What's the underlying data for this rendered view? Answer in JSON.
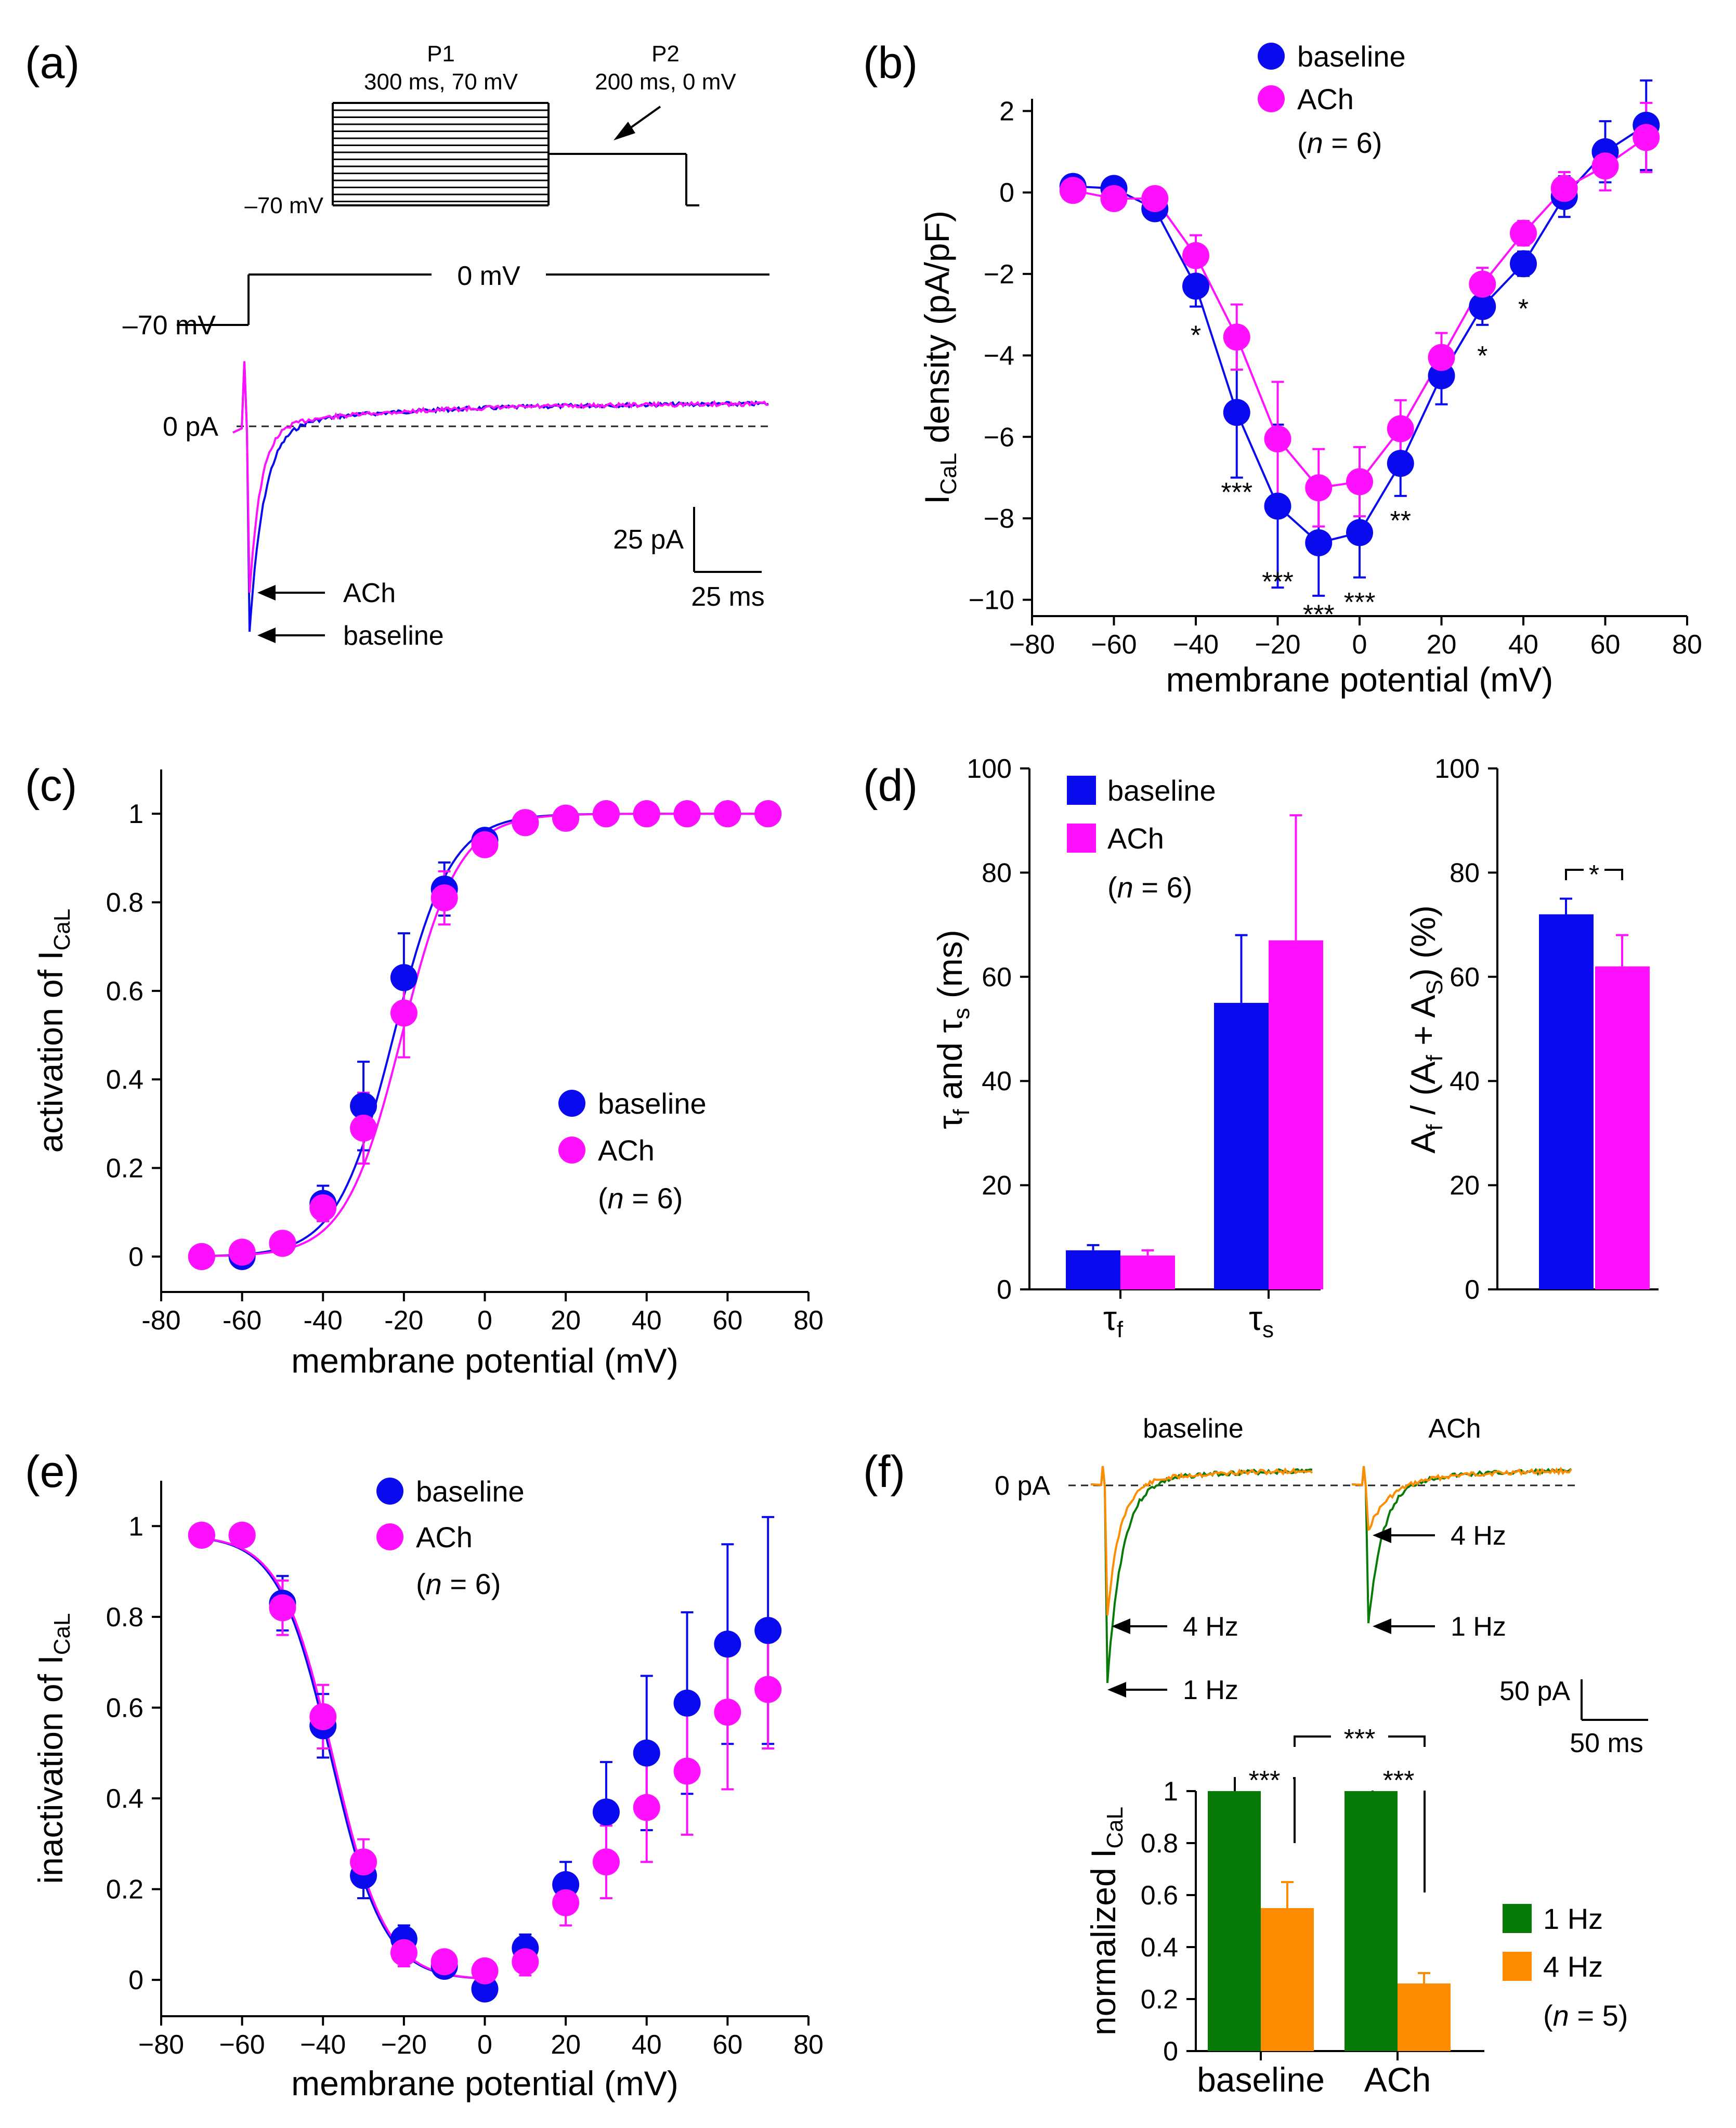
{
  "colors": {
    "baseline": "#0a0aee",
    "ach": "#ff10ff",
    "hz1": "#087a08",
    "hz4": "#ff8c00"
  },
  "panels": [
    "(a)",
    "(b)",
    "(c)",
    "(d)",
    "(e)",
    "(f)"
  ],
  "panel_a": {
    "p1": "P1",
    "p1_desc": "300 ms, 70 mV",
    "p2": "P2",
    "p2_desc": "200 ms, 0 mV",
    "hold_label": "–70 mV",
    "step_hold": "–70 mV",
    "step_test": "0 mV",
    "zero_label": "0 pA",
    "scale_y": "25 pA",
    "scale_x": "25 ms",
    "arrow_ach": "ACh",
    "arrow_baseline": "baseline"
  },
  "panel_f": {
    "trace_titles": [
      "baseline",
      "ACh"
    ],
    "zero_label": "0 pA",
    "arrows_baseline": [
      "4 Hz",
      "1 Hz"
    ],
    "arrows_ach": [
      "4 Hz",
      "1 Hz"
    ],
    "scale_y": "50 pA",
    "scale_x": "50 ms"
  },
  "chart_data": [
    {
      "id": "b",
      "type": "line",
      "xlabel": "membrane potential (mV)",
      "ylabel": "I",
      "ylabel_sub": "CaL",
      "ylabel_rest": " density (pA/pF)",
      "xlim": [
        -80,
        80
      ],
      "ylim": [
        -10,
        2
      ],
      "xticks": [
        -80,
        -60,
        -40,
        -20,
        0,
        20,
        40,
        60,
        80
      ],
      "yticks": [
        2,
        0,
        -2,
        -4,
        -6,
        -8,
        -10
      ],
      "x": [
        -70,
        -60,
        -50,
        -40,
        -30,
        -20,
        -10,
        0,
        10,
        20,
        30,
        40,
        50,
        60,
        70
      ],
      "series": [
        {
          "name": "baseline",
          "values": [
            0.15,
            0.1,
            -0.4,
            -2.3,
            -5.4,
            -7.7,
            -8.6,
            -8.35,
            -6.65,
            -4.5,
            -2.8,
            -1.75,
            -0.1,
            1.0,
            1.65
          ],
          "err": [
            0.15,
            0.15,
            0.2,
            0.5,
            1.6,
            2.0,
            1.3,
            1.1,
            0.8,
            0.7,
            0.45,
            0.3,
            0.5,
            0.75,
            1.1
          ]
        },
        {
          "name": "ACh",
          "values": [
            0.05,
            -0.15,
            -0.15,
            -1.55,
            -3.55,
            -6.05,
            -7.25,
            -7.1,
            -5.8,
            -4.05,
            -2.25,
            -1.0,
            0.1,
            0.65,
            1.35
          ],
          "err": [
            0.15,
            0.15,
            0.2,
            0.5,
            0.8,
            1.4,
            0.95,
            0.85,
            0.7,
            0.6,
            0.4,
            0.3,
            0.4,
            0.6,
            0.85
          ]
        }
      ],
      "annotations": [
        {
          "x": -40,
          "y": -3.35,
          "text": "*"
        },
        {
          "x": -30,
          "y": -7.2,
          "text": "***"
        },
        {
          "x": -20,
          "y": -9.4,
          "text": "***"
        },
        {
          "x": -10,
          "y": -10.2,
          "text": "***"
        },
        {
          "x": 0,
          "y": -9.9,
          "text": "***"
        },
        {
          "x": 10,
          "y": -7.9,
          "text": "**"
        },
        {
          "x": 30,
          "y": -3.85,
          "text": "*"
        },
        {
          "x": 40,
          "y": -2.7,
          "text": "*"
        }
      ],
      "legend": {
        "entries": [
          "baseline",
          "ACh"
        ],
        "note": "(n = 6)"
      }
    },
    {
      "id": "c",
      "type": "scatter",
      "xlabel": "membrane potential (mV)",
      "ylabel": "activation of I",
      "ylabel_sub": "CaL",
      "xlim": [
        -80,
        80
      ],
      "ylim": [
        -0.08,
        1.1
      ],
      "xticks": [
        -80,
        -60,
        -40,
        -20,
        0,
        20,
        40,
        60,
        80
      ],
      "yticks": [
        0,
        0.2,
        0.4,
        0.6,
        0.8,
        1
      ],
      "x": [
        -70,
        -60,
        -50,
        -40,
        -30,
        -20,
        -10,
        0,
        10,
        20,
        30,
        40,
        50,
        60,
        70
      ],
      "series": [
        {
          "name": "baseline",
          "values": [
            0.0,
            0.0,
            0.03,
            0.12,
            0.34,
            0.63,
            0.83,
            0.94,
            0.98,
            0.99,
            1.0,
            1.0,
            1.0,
            1.0,
            1.0
          ],
          "err": [
            0.01,
            0.01,
            0.02,
            0.04,
            0.1,
            0.1,
            0.06,
            0.02,
            0.01,
            0.01,
            0,
            0,
            0,
            0,
            0
          ]
        },
        {
          "name": "ACh",
          "values": [
            0.0,
            0.01,
            0.03,
            0.11,
            0.29,
            0.55,
            0.81,
            0.93,
            0.98,
            0.99,
            1.0,
            1.0,
            1.0,
            1.0,
            1.0
          ],
          "err": [
            0.01,
            0.01,
            0.02,
            0.03,
            0.08,
            0.1,
            0.06,
            0.02,
            0.01,
            0.01,
            0,
            0,
            0,
            0,
            0
          ]
        }
      ],
      "fits": [
        {
          "name": "baseline",
          "v_half": -22.5,
          "k": 7
        },
        {
          "name": "ACh",
          "v_half": -20.5,
          "k": 7
        }
      ],
      "legend": {
        "entries": [
          "baseline",
          "ACh"
        ],
        "note": "(n = 6)"
      }
    },
    {
      "id": "d1",
      "type": "bar",
      "ylabel": "τf and τs (ms)",
      "ylim": [
        0,
        100
      ],
      "yticks": [
        0,
        20,
        40,
        60,
        80,
        100
      ],
      "categories": [
        "τf",
        "τs"
      ],
      "series": [
        {
          "name": "baseline",
          "values": [
            7.5,
            55
          ],
          "err": [
            1.0,
            13
          ]
        },
        {
          "name": "ACh",
          "values": [
            6.5,
            67
          ],
          "err": [
            1.0,
            24
          ]
        }
      ],
      "legend": {
        "entries": [
          "baseline",
          "ACh"
        ],
        "note": "(n = 6)"
      }
    },
    {
      "id": "d2",
      "type": "bar",
      "ylabel": "Af / (Af + As) (%)",
      "ylim": [
        0,
        100
      ],
      "yticks": [
        0,
        20,
        40,
        60,
        80,
        100
      ],
      "categories": [
        ""
      ],
      "series": [
        {
          "name": "baseline",
          "values": [
            72
          ],
          "err": [
            3
          ]
        },
        {
          "name": "ACh",
          "values": [
            62
          ],
          "err": [
            6
          ]
        }
      ],
      "annotations": [
        {
          "text": "*"
        }
      ]
    },
    {
      "id": "e",
      "type": "scatter",
      "xlabel": "membrane potential (mV)",
      "ylabel": "inactivation of I",
      "ylabel_sub": "CaL",
      "xlim": [
        -80,
        80
      ],
      "ylim": [
        -0.08,
        1.1
      ],
      "xticks": [
        -80,
        -60,
        -40,
        -20,
        0,
        20,
        40,
        60,
        80
      ],
      "yticks": [
        0,
        0.2,
        0.4,
        0.6,
        0.8,
        1
      ],
      "x": [
        -70,
        -60,
        -50,
        -40,
        -30,
        -20,
        -10,
        0,
        10,
        20,
        30,
        40,
        50,
        60,
        70
      ],
      "series": [
        {
          "name": "baseline",
          "values": [
            0.98,
            0.98,
            0.83,
            0.56,
            0.23,
            0.09,
            0.03,
            -0.02,
            0.07,
            0.21,
            0.37,
            0.5,
            0.61,
            0.74,
            0.77
          ],
          "err": [
            0.01,
            0.01,
            0.06,
            0.07,
            0.05,
            0.03,
            0.02,
            0.02,
            0.03,
            0.05,
            0.11,
            0.17,
            0.2,
            0.22,
            0.25
          ]
        },
        {
          "name": "ACh",
          "values": [
            0.98,
            0.98,
            0.82,
            0.58,
            0.26,
            0.06,
            0.04,
            0.02,
            0.04,
            0.17,
            0.26,
            0.38,
            0.46,
            0.59,
            0.64
          ],
          "err": [
            0.01,
            0.01,
            0.06,
            0.07,
            0.05,
            0.03,
            0.02,
            0.02,
            0.03,
            0.05,
            0.08,
            0.12,
            0.14,
            0.17,
            0.13
          ]
        }
      ],
      "fits": [
        {
          "name": "baseline",
          "v_half": -38,
          "k": 6.5,
          "top": 0.98
        },
        {
          "name": "ACh",
          "v_half": -37.5,
          "k": 6.5,
          "top": 0.98
        }
      ],
      "legend": {
        "entries": [
          "baseline",
          "ACh"
        ],
        "note": "(n = 6)"
      }
    },
    {
      "id": "f",
      "type": "bar",
      "ylabel": "normalized I",
      "ylabel_sub": "CaL",
      "ylim": [
        0,
        1
      ],
      "yticks": [
        0,
        0.2,
        0.4,
        0.6,
        0.8,
        1
      ],
      "categories": [
        "baseline",
        "ACh"
      ],
      "series": [
        {
          "name": "1 Hz",
          "values": [
            1.0,
            1.0
          ],
          "err": [
            0,
            0
          ]
        },
        {
          "name": "4 Hz",
          "values": [
            0.55,
            0.26
          ],
          "err": [
            0.1,
            0.04
          ]
        }
      ],
      "annotations": [
        {
          "text": "***"
        },
        {
          "text": "***"
        },
        {
          "text": "***"
        }
      ],
      "legend": {
        "entries": [
          "1 Hz",
          "4 Hz"
        ],
        "note": "(n = 5)"
      }
    }
  ]
}
